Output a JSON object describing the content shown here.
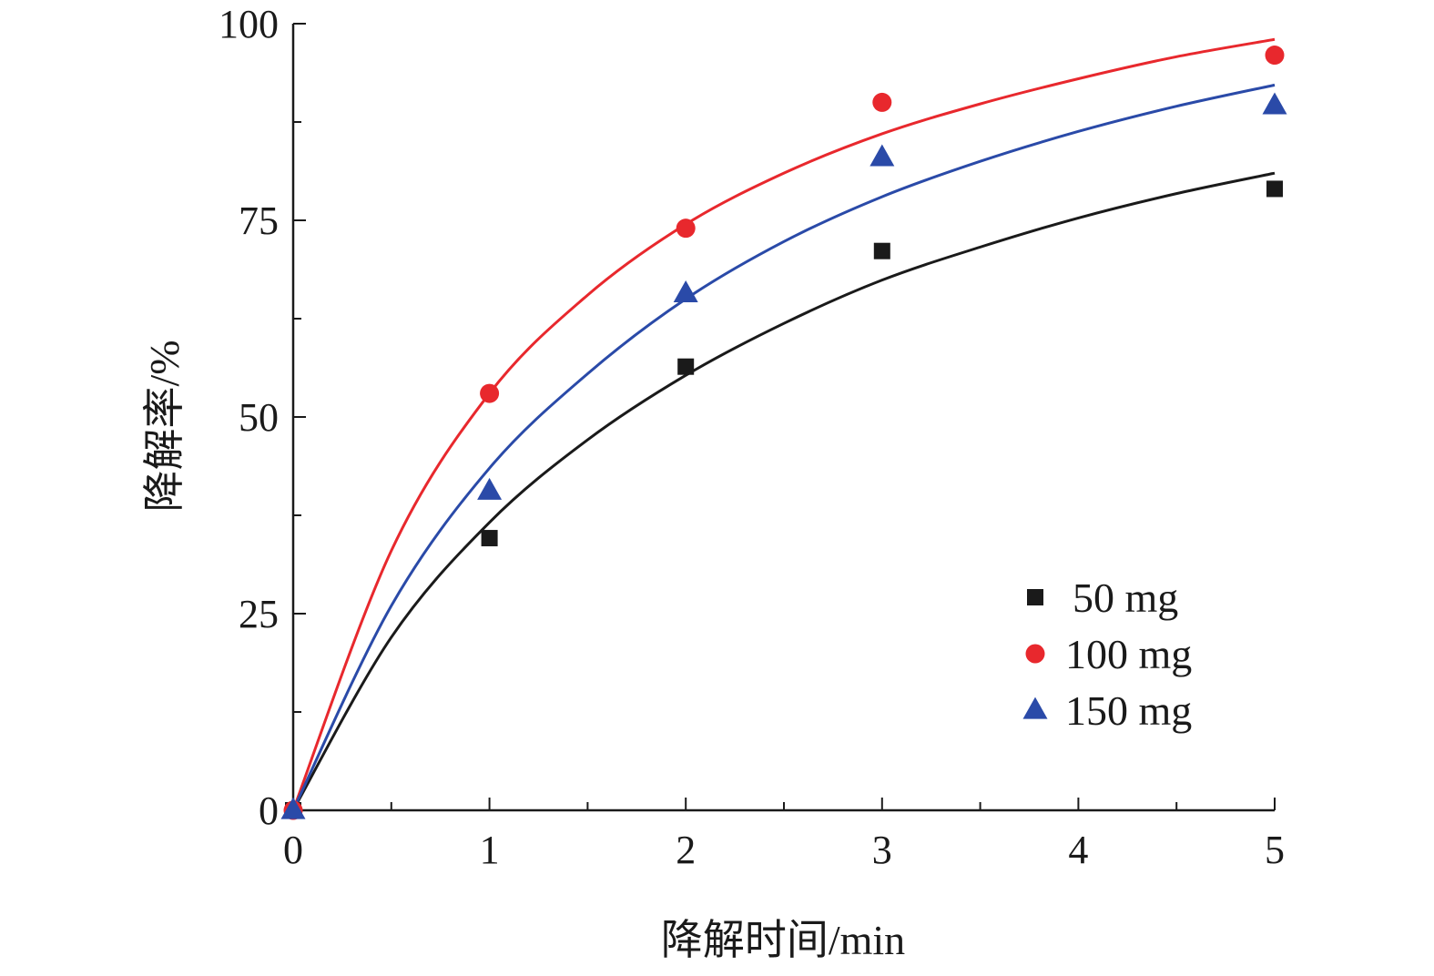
{
  "chart_data": {
    "type": "scatter",
    "xlabel": "降解时间/min",
    "ylabel": "降解率/%",
    "xlim": [
      0,
      5
    ],
    "ylim": [
      0,
      100
    ],
    "x_ticks": [
      0,
      1,
      2,
      3,
      4,
      5
    ],
    "y_ticks": [
      0,
      25,
      50,
      75,
      100
    ],
    "x_tick_labels": [
      "0",
      "1",
      "2",
      "3",
      "4",
      "5"
    ],
    "y_tick_labels": [
      "0",
      "25",
      "50",
      "75",
      "100"
    ],
    "grid": false,
    "legend_position": "lower-right",
    "x": [
      0,
      1,
      2,
      3,
      5
    ],
    "series": [
      {
        "name": "50 mg",
        "marker": "square",
        "color": "#1a1a1a",
        "values": [
          0,
          34.6,
          56.4,
          71.1,
          79.0
        ],
        "fit_curve": {
          "x": [
            0,
            0.5,
            1,
            1.5,
            2,
            2.5,
            3,
            3.5,
            4,
            4.5,
            5
          ],
          "y": [
            0,
            22.0,
            36.6,
            47.1,
            55.3,
            61.9,
            67.4,
            71.6,
            75.3,
            78.4,
            81.0
          ]
        }
      },
      {
        "name": "100 mg",
        "marker": "circle",
        "color": "#e8282d",
        "values": [
          0,
          53.0,
          74.0,
          90.0,
          96.0
        ],
        "fit_curve": {
          "x": [
            0,
            0.5,
            1,
            1.5,
            2,
            2.5,
            3,
            3.5,
            4,
            4.5,
            5
          ],
          "y": [
            0,
            33.0,
            53.0,
            65.5,
            74.5,
            81.0,
            86.0,
            89.8,
            93.0,
            95.8,
            98.0
          ]
        }
      },
      {
        "name": "150 mg",
        "marker": "triangle",
        "color": "#2a4aa8",
        "values": [
          0,
          40.6,
          65.7,
          83.0,
          89.6
        ],
        "fit_curve": {
          "x": [
            0,
            0.5,
            1,
            1.5,
            2,
            2.5,
            3,
            3.5,
            4,
            4.5,
            5
          ],
          "y": [
            0,
            26.0,
            43.5,
            55.5,
            65.0,
            72.3,
            78.0,
            82.5,
            86.3,
            89.5,
            92.2
          ]
        }
      }
    ]
  }
}
